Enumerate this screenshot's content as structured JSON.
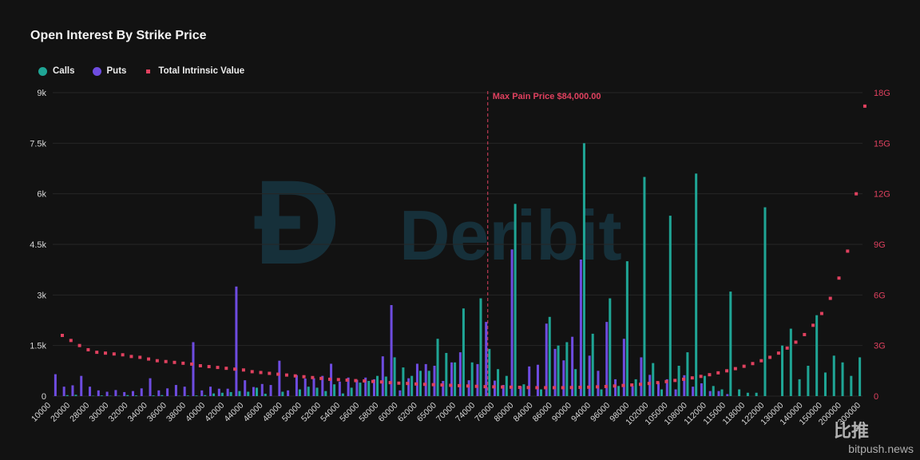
{
  "colors": {
    "calls": "#1fa595",
    "puts": "#6e4ce0",
    "intrinsic": "#e0415f",
    "marker": "#e0415f",
    "grid": "#262626",
    "axis_text": "#d8d8d8",
    "right_axis_text": "#e0415f",
    "watermark": "#1a4a5c"
  },
  "watermarks": {
    "logo_text": "Deribit",
    "cn": "比推",
    "site": "bitpush.news"
  },
  "chart_data": {
    "type": "bar",
    "title": "Open Interest By Strike Price",
    "legend": [
      {
        "name": "Calls",
        "marker": "circle",
        "color": "#1fa595"
      },
      {
        "name": "Puts",
        "marker": "circle",
        "color": "#6e4ce0"
      },
      {
        "name": "Total Intrinsic Value",
        "marker": "square",
        "color": "#e0415f"
      }
    ],
    "legend_position": "top-left",
    "grid": true,
    "y_left": {
      "ticks": [
        "0",
        "1.5k",
        "3k",
        "4.5k",
        "6k",
        "7.5k",
        "9k"
      ],
      "lim": [
        0,
        9000
      ]
    },
    "y_right": {
      "ticks": [
        "0",
        "3G",
        "6G",
        "9G",
        "12G",
        "15G",
        "18G"
      ],
      "lim": [
        0,
        18
      ]
    },
    "x_tick_labels": [
      "10000",
      "20000",
      "28000",
      "30000",
      "32000",
      "34000",
      "36000",
      "38000",
      "40000",
      "42000",
      "44000",
      "46000",
      "48000",
      "50000",
      "52000",
      "54000",
      "56000",
      "58000",
      "60000",
      "62000",
      "65000",
      "70000",
      "74000",
      "76000",
      "80000",
      "84000",
      "86000",
      "90000",
      "94000",
      "96000",
      "98000",
      "102000",
      "105000",
      "108000",
      "112000",
      "115000",
      "118000",
      "122000",
      "130000",
      "140000",
      "150000",
      "200000",
      "300000"
    ],
    "annotation": {
      "label": "Max Pain Price $84,000.00",
      "x_index": 50
    },
    "calls": [
      0,
      30,
      40,
      0,
      10,
      20,
      10,
      10,
      30,
      20,
      0,
      20,
      30,
      0,
      10,
      20,
      20,
      30,
      80,
      100,
      120,
      150,
      130,
      250,
      70,
      0,
      130,
      0,
      200,
      280,
      250,
      150,
      350,
      80,
      250,
      400,
      450,
      600,
      580,
      1150,
      850,
      600,
      750,
      750,
      1700,
      1280,
      1000,
      2600,
      1000,
      2900,
      1400,
      800,
      600,
      5700,
      350,
      0,
      200,
      2350,
      1500,
      1600,
      800,
      7500,
      1850,
      200,
      2900,
      300,
      4000,
      500,
      6500,
      980,
      200,
      5350,
      900,
      1300,
      6600,
      600,
      300,
      200,
      3100,
      200,
      100,
      100,
      5600,
      0,
      1500,
      2000,
      500,
      900,
      2400,
      700,
      1200,
      1000,
      600,
      1150
    ],
    "puts": [
      650,
      280,
      320,
      600,
      280,
      170,
      130,
      180,
      120,
      150,
      230,
      530,
      170,
      230,
      330,
      280,
      1600,
      170,
      280,
      220,
      220,
      3250,
      470,
      270,
      360,
      330,
      1050,
      170,
      620,
      520,
      530,
      600,
      960,
      430,
      550,
      480,
      550,
      500,
      1180,
      2700,
      170,
      530,
      960,
      950,
      900,
      450,
      1000,
      1300,
      470,
      950,
      2200,
      460,
      330,
      4350,
      290,
      880,
      930,
      2150,
      1400,
      1060,
      1760,
      4050,
      1200,
      750,
      2200,
      500,
      1700,
      300,
      1150,
      630,
      400,
      500,
      200,
      620,
      280,
      380,
      150,
      150,
      60,
      0,
      0,
      0,
      0,
      0,
      0,
      0,
      0,
      0,
      0,
      0,
      0,
      0,
      0,
      0
    ],
    "intrinsic_values": [
      3.6,
      3.3,
      3.0,
      2.75,
      2.6,
      2.55,
      2.5,
      2.45,
      2.35,
      2.3,
      2.2,
      2.1,
      2.05,
      2.0,
      1.95,
      1.9,
      1.8,
      1.75,
      1.7,
      1.65,
      1.6,
      1.55,
      1.45,
      1.4,
      1.35,
      1.3,
      1.25,
      1.2,
      1.15,
      1.1,
      1.05,
      1.0,
      0.98,
      0.95,
      0.92,
      0.9,
      0.87,
      0.84,
      0.8,
      0.77,
      0.75,
      0.72,
      0.7,
      0.68,
      0.66,
      0.64,
      0.62,
      0.6,
      0.58,
      0.56,
      0.55,
      0.54,
      0.53,
      0.52,
      0.51,
      0.5,
      0.5,
      0.5,
      0.5,
      0.51,
      0.52,
      0.53,
      0.55,
      0.57,
      0.6,
      0.63,
      0.66,
      0.7,
      0.75,
      0.8,
      0.86,
      0.93,
      1.0,
      1.08,
      1.17,
      1.27,
      1.38,
      1.5,
      1.63,
      1.77,
      1.93,
      2.1,
      2.3,
      2.55,
      2.85,
      3.2,
      3.65,
      4.2,
      4.9,
      5.8,
      7.0,
      8.6,
      12.0,
      17.2
    ],
    "y_units": {
      "left": "contracts",
      "right": "USD"
    }
  }
}
